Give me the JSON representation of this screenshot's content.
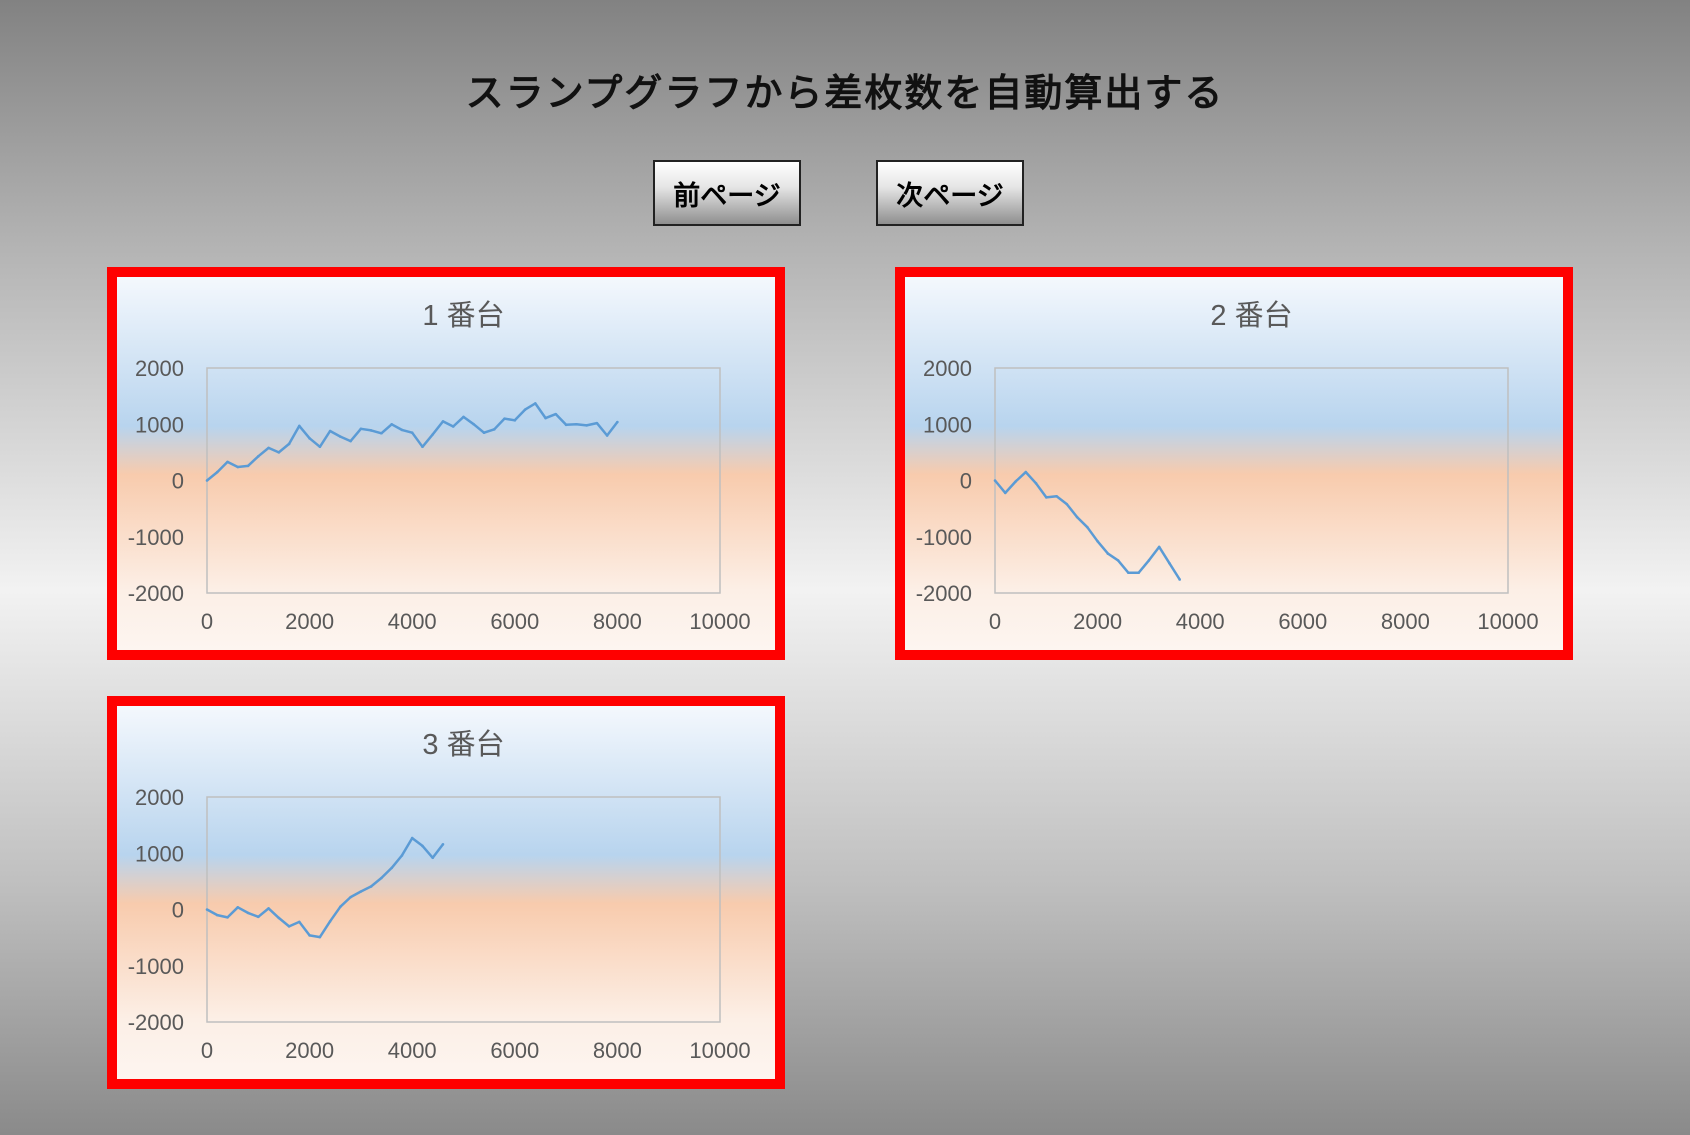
{
  "page": {
    "title": "スランプグラフから差枚数を自動算出する",
    "prev_label": "前ページ",
    "next_label": "次ページ"
  },
  "style": {
    "line_color": "#5b9bd5",
    "border_color": "#ff0000",
    "axis_color": "#bfbfbf",
    "text_color": "#595959"
  },
  "chart_data": [
    {
      "type": "line",
      "title": "1 番台",
      "xlim": [
        0,
        10000
      ],
      "ylim": [
        -2000,
        2000
      ],
      "xticks": [
        0,
        2000,
        4000,
        6000,
        8000,
        10000
      ],
      "yticks": [
        2000,
        1000,
        0,
        -1000,
        -2000
      ],
      "x": [
        0,
        200,
        400,
        600,
        800,
        1000,
        1200,
        1400,
        1600,
        1800,
        2000,
        2200,
        2400,
        2600,
        2800,
        3000,
        3200,
        3400,
        3600,
        3800,
        4000,
        4200,
        4400,
        4600,
        4800,
        5000,
        5200,
        5400,
        5600,
        5800,
        6000,
        6200,
        6400,
        6600,
        6800,
        7000,
        7200,
        7400,
        7600,
        7800,
        8000
      ],
      "values": [
        0,
        150,
        330,
        240,
        260,
        430,
        580,
        500,
        650,
        970,
        750,
        600,
        880,
        780,
        700,
        920,
        890,
        840,
        1000,
        900,
        850,
        600,
        820,
        1050,
        960,
        1130,
        1000,
        850,
        910,
        1100,
        1070,
        1260,
        1370,
        1110,
        1180,
        990,
        1000,
        980,
        1020,
        800,
        1040
      ]
    },
    {
      "type": "line",
      "title": "2 番台",
      "xlim": [
        0,
        10000
      ],
      "ylim": [
        -2000,
        2000
      ],
      "xticks": [
        0,
        2000,
        4000,
        6000,
        8000,
        10000
      ],
      "yticks": [
        2000,
        1000,
        0,
        -1000,
        -2000
      ],
      "x": [
        0,
        200,
        400,
        600,
        800,
        1000,
        1200,
        1400,
        1600,
        1800,
        2000,
        2200,
        2400,
        2600,
        2800,
        3000,
        3200,
        3400,
        3600
      ],
      "values": [
        0,
        -220,
        -20,
        150,
        -50,
        -300,
        -280,
        -420,
        -650,
        -830,
        -1080,
        -1300,
        -1420,
        -1640,
        -1640,
        -1420,
        -1180,
        -1470,
        -1760
      ]
    },
    {
      "type": "line",
      "title": "3 番台",
      "xlim": [
        0,
        10000
      ],
      "ylim": [
        -2000,
        2000
      ],
      "xticks": [
        0,
        2000,
        4000,
        6000,
        8000,
        10000
      ],
      "yticks": [
        2000,
        1000,
        0,
        -1000,
        -2000
      ],
      "x": [
        0,
        200,
        400,
        600,
        800,
        1000,
        1200,
        1400,
        1600,
        1800,
        2000,
        2200,
        2400,
        2600,
        2800,
        3000,
        3200,
        3400,
        3600,
        3800,
        4000,
        4200,
        4400,
        4600
      ],
      "values": [
        0,
        -100,
        -140,
        40,
        -60,
        -130,
        20,
        -150,
        -300,
        -220,
        -460,
        -490,
        -210,
        50,
        220,
        320,
        410,
        560,
        740,
        960,
        1270,
        1130,
        920,
        1160
      ]
    }
  ]
}
